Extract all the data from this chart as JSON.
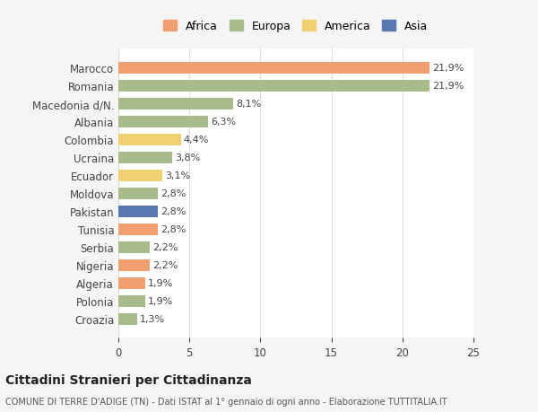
{
  "countries": [
    "Marocco",
    "Romania",
    "Macedonia d/N.",
    "Albania",
    "Colombia",
    "Ucraina",
    "Ecuador",
    "Moldova",
    "Pakistan",
    "Tunisia",
    "Serbia",
    "Nigeria",
    "Algeria",
    "Polonia",
    "Croazia"
  ],
  "values": [
    21.9,
    21.9,
    8.1,
    6.3,
    4.4,
    3.8,
    3.1,
    2.8,
    2.8,
    2.8,
    2.2,
    2.2,
    1.9,
    1.9,
    1.3
  ],
  "labels": [
    "21,9%",
    "21,9%",
    "8,1%",
    "6,3%",
    "4,4%",
    "3,8%",
    "3,1%",
    "2,8%",
    "2,8%",
    "2,8%",
    "2,2%",
    "2,2%",
    "1,9%",
    "1,9%",
    "1,3%"
  ],
  "continents": [
    "Africa",
    "Europa",
    "Europa",
    "Europa",
    "America",
    "Europa",
    "America",
    "Europa",
    "Asia",
    "Africa",
    "Europa",
    "Africa",
    "Africa",
    "Europa",
    "Europa"
  ],
  "colors": {
    "Africa": "#F0A070",
    "Europa": "#A8BC8A",
    "America": "#F0D070",
    "Asia": "#5878B0"
  },
  "legend_order": [
    "Africa",
    "Europa",
    "America",
    "Asia"
  ],
  "xlim": [
    0,
    25
  ],
  "xticks": [
    0,
    5,
    10,
    15,
    20,
    25
  ],
  "title": "Cittadini Stranieri per Cittadinanza",
  "subtitle": "COMUNE DI TERRE D'ADIGE (TN) - Dati ISTAT al 1° gennaio di ogni anno - Elaborazione TUTTITALIA.IT",
  "bg_color": "#f5f5f5",
  "plot_bg_color": "#ffffff",
  "grid_color": "#dddddd"
}
